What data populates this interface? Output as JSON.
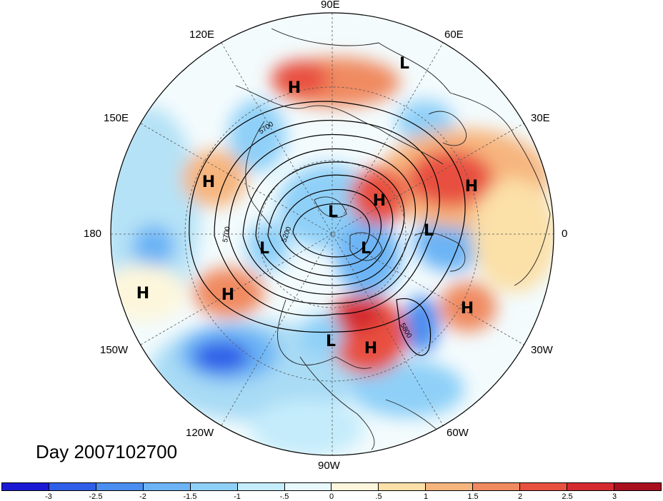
{
  "title": "Day 2007102700",
  "longitude_labels": {
    "top": "90E",
    "upper_left": "120E",
    "upper_right": "60E",
    "mid_upper_left": "150E",
    "mid_upper_right": "30E",
    "left": "180",
    "right": "0",
    "mid_lower_left": "150W",
    "mid_lower_right": "30W",
    "lower_left": "120W",
    "lower_right": "60W",
    "bottom": "90W"
  },
  "contour_labels": [
    "5700",
    "5200",
    "5700",
    "5800"
  ],
  "pressure_centers": [
    {
      "type": "H"
    },
    {
      "type": "L"
    },
    {
      "type": "H"
    },
    {
      "type": "H"
    },
    {
      "type": "H"
    },
    {
      "type": "L"
    },
    {
      "type": "L"
    },
    {
      "type": "L"
    },
    {
      "type": "L"
    },
    {
      "type": "H"
    },
    {
      "type": "H"
    },
    {
      "type": "H"
    },
    {
      "type": "L"
    },
    {
      "type": "H"
    }
  ],
  "colorbar": {
    "labels": [
      "-3",
      "-2.5",
      "-2",
      "-1.5",
      "-1",
      "-.5",
      "0",
      ".5",
      "1",
      "1.5",
      "2",
      "2.5",
      "3"
    ],
    "colors": [
      "#1a1ad4",
      "#2f5fe8",
      "#4a8ef0",
      "#6cb4f5",
      "#8fd0f8",
      "#c5ecfb",
      "#e8f8fd",
      "#fdf6dc",
      "#fbe0a8",
      "#f7b57e",
      "#f08a60",
      "#e8503f",
      "#d42a2f",
      "#a81020"
    ]
  }
}
